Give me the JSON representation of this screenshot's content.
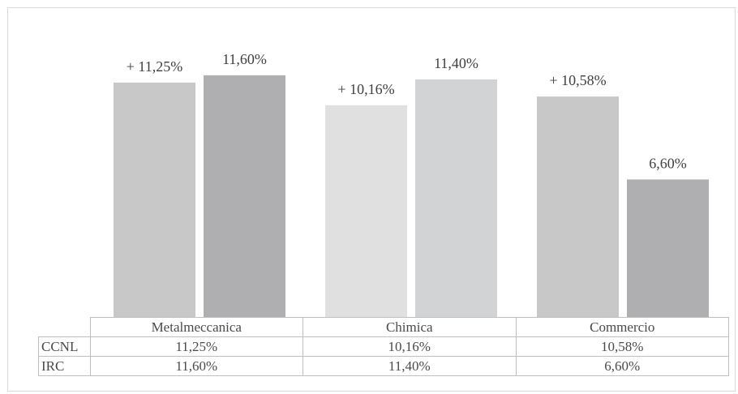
{
  "chart_data": {
    "type": "bar",
    "categories": [
      "Metalmeccanica",
      "Chimica",
      "Commercio"
    ],
    "series": [
      {
        "name": "CCNL",
        "values": [
          11.25,
          10.16,
          10.58
        ],
        "bar_labels": [
          "+ 11,25%",
          "+ 10,16%",
          "+ 10,58%"
        ],
        "table_labels": [
          "11,25%",
          "10,16%",
          "10,58%"
        ]
      },
      {
        "name": "IRC",
        "values": [
          11.6,
          11.4,
          6.6
        ],
        "bar_labels": [
          "11,60%",
          "11,40%",
          "6,60%"
        ],
        "table_labels": [
          "11,60%",
          "11,40%",
          "6,60%"
        ]
      }
    ],
    "bar_colors": [
      [
        "#c8c8c8",
        "#afafb1"
      ],
      [
        "#e0e0e0",
        "#d2d3d5"
      ],
      [
        "#c8c8c8",
        "#afafb1"
      ]
    ],
    "ylim": [
      0,
      12.8
    ],
    "grid": false,
    "legend": "data-table-below"
  }
}
